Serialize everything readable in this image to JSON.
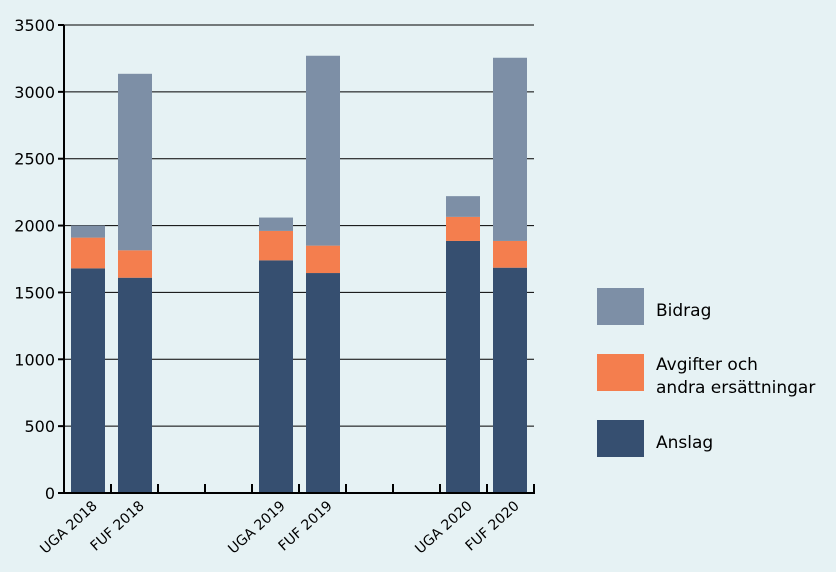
{
  "chart_data": {
    "type": "bar",
    "stacked": true,
    "categories": [
      "UGA 2018",
      "FUF 2018",
      "UGA 2019",
      "FUF 2019",
      "UGA 2020",
      "FUF 2020"
    ],
    "series": [
      {
        "name": "Anslag",
        "color": "#364f70",
        "values": [
          1680,
          1610,
          1740,
          1645,
          1885,
          1685
        ]
      },
      {
        "name": "Avgifter och andra ersättningar",
        "color": "#f47e4e",
        "values": [
          230,
          205,
          220,
          205,
          180,
          200
        ]
      },
      {
        "name": "Bidrag",
        "color": "#7d8fa6",
        "values": [
          90,
          1320,
          100,
          1420,
          155,
          1370
        ]
      }
    ],
    "ylim": [
      0,
      3500
    ],
    "yticks": [
      0,
      500,
      1000,
      1500,
      2000,
      2500,
      3000,
      3500
    ],
    "grid": true,
    "legend_position": "right",
    "legend_order": [
      "Bidrag",
      "Avgifter och andra ersättningar",
      "Anslag"
    ],
    "legend_labels": {
      "Bidrag": [
        "Bidrag"
      ],
      "Avgifter och andra ersättningar": [
        "Avgifter och",
        "andra ersättningar"
      ],
      "Anslag": [
        "Anslag"
      ]
    },
    "title": "",
    "xlabel": "",
    "ylabel": ""
  }
}
